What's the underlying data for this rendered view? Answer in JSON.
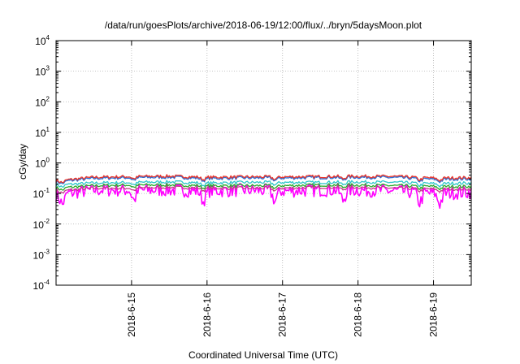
{
  "chart_data": {
    "type": "line",
    "title": "/data/run/goesPlots/archive/2018-06-19/12:00/flux/../bryn/5daysMoon.plot",
    "xlabel": "Coordinated Universal Time (UTC)",
    "ylabel": "cGy/day",
    "yscale": "log",
    "ylim": [
      0.0001,
      10000
    ],
    "y_ticks": [
      {
        "base": "10",
        "exp": "-4",
        "value": 0.0001
      },
      {
        "base": "10",
        "exp": "-3",
        "value": 0.001
      },
      {
        "base": "10",
        "exp": "-2",
        "value": 0.01
      },
      {
        "base": "10",
        "exp": "-1",
        "value": 0.1
      },
      {
        "base": "10",
        "exp": "0",
        "value": 1
      },
      {
        "base": "10",
        "exp": "1",
        "value": 10
      },
      {
        "base": "10",
        "exp": "2",
        "value": 100
      },
      {
        "base": "10",
        "exp": "3",
        "value": 1000
      },
      {
        "base": "10",
        "exp": "4",
        "value": 10000
      }
    ],
    "xlim": [
      "2018-06-14 00:00",
      "2018-06-19 12:00"
    ],
    "x_ticks": [
      {
        "label": "2018-6-15",
        "value": "2018-06-15 00:00"
      },
      {
        "label": "2018-6-16",
        "value": "2018-06-16 00:00"
      },
      {
        "label": "2018-6-17",
        "value": "2018-06-17 00:00"
      },
      {
        "label": "2018-6-18",
        "value": "2018-06-18 00:00"
      },
      {
        "label": "2018-6-19",
        "value": "2018-06-19 00:00"
      }
    ],
    "grid": true,
    "x": [
      "2018-06-14 00:00",
      "2018-06-14 12:00",
      "2018-06-15 00:00",
      "2018-06-15 12:00",
      "2018-06-16 00:00",
      "2018-06-16 12:00",
      "2018-06-17 00:00",
      "2018-06-17 12:00",
      "2018-06-18 00:00",
      "2018-06-18 12:00",
      "2018-06-19 00:00",
      "2018-06-19 12:00"
    ],
    "series": [
      {
        "color": "#e8332a",
        "values": [
          0.26,
          0.34,
          0.36,
          0.37,
          0.34,
          0.35,
          0.35,
          0.36,
          0.37,
          0.36,
          0.32,
          0.33
        ]
      },
      {
        "color": "#2a6fd6",
        "values": [
          0.24,
          0.31,
          0.33,
          0.34,
          0.31,
          0.32,
          0.32,
          0.33,
          0.34,
          0.33,
          0.29,
          0.3
        ]
      },
      {
        "color": "#2ec7c9",
        "values": [
          0.19,
          0.22,
          0.23,
          0.24,
          0.22,
          0.23,
          0.23,
          0.23,
          0.24,
          0.23,
          0.21,
          0.22
        ]
      },
      {
        "color": "#2aa82a",
        "values": [
          0.15,
          0.18,
          0.19,
          0.19,
          0.18,
          0.18,
          0.18,
          0.19,
          0.19,
          0.18,
          0.17,
          0.17
        ]
      },
      {
        "color": "#c43a8c",
        "values": [
          0.12,
          0.15,
          0.15,
          0.16,
          0.15,
          0.15,
          0.15,
          0.16,
          0.16,
          0.15,
          0.14,
          0.14
        ]
      },
      {
        "color": "#ff00ff",
        "values": [
          0.09,
          0.13,
          0.13,
          0.13,
          0.12,
          0.13,
          0.12,
          0.13,
          0.13,
          0.12,
          0.1,
          0.11
        ]
      }
    ]
  }
}
